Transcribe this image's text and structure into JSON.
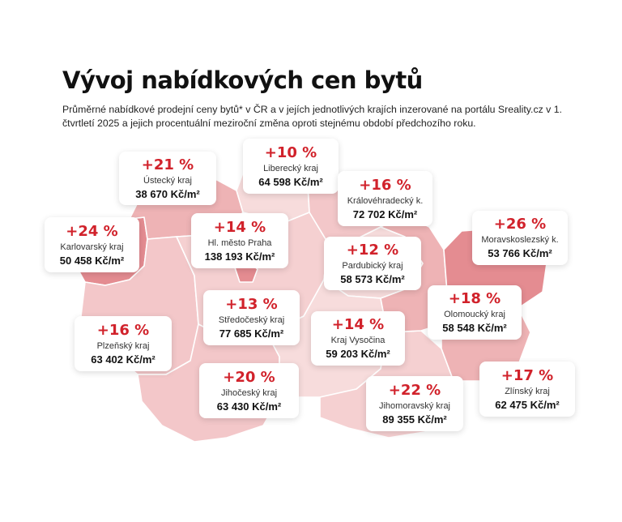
{
  "header": {
    "title": "Vývoj nabídkových cen bytů",
    "subtitle": "Průměrné nabídkové prodejní ceny bytů* v ČR a v jejích jednotlivých krajích inzerované na portálu Sreality.cz v 1. čtvrtletí 2025 a jejich procentuální meziroční změna oproti stejnému období předchozího roku."
  },
  "colors": {
    "accent_red": "#d1222b",
    "map_light": "#f7dcdc",
    "map_mid": "#eeb3b5",
    "map_strong": "#e48c91",
    "map_outline": "#ffffff"
  },
  "regions": [
    {
      "id": "ustecky",
      "change": "+21 %",
      "name": "Ústecký kraj",
      "price": "38 670 Kč/m²"
    },
    {
      "id": "liberecky",
      "change": "+10 %",
      "name": "Liberecký kraj",
      "price": "64 598 Kč/m²"
    },
    {
      "id": "kralovehradecky",
      "change": "+16 %",
      "name": "Královéhradecký k.",
      "price": "72 702 Kč/m²"
    },
    {
      "id": "karlovarsky",
      "change": "+24 %",
      "name": "Karlovarský kraj",
      "price": "50 458 Kč/m²"
    },
    {
      "id": "praha",
      "change": "+14 %",
      "name": "Hl. město Praha",
      "price": "138 193 Kč/m²"
    },
    {
      "id": "pardubicky",
      "change": "+12 %",
      "name": "Pardubický kraj",
      "price": "58 573 Kč/m²"
    },
    {
      "id": "moravskoslezsky",
      "change": "+26 %",
      "name": "Moravskoslezský k.",
      "price": "53 766 Kč/m²"
    },
    {
      "id": "stredocesky",
      "change": "+13 %",
      "name": "Středočeský kraj",
      "price": "77 685 Kč/m²"
    },
    {
      "id": "olomoucky",
      "change": "+18 %",
      "name": "Olomoucký kraj",
      "price": "58 548 Kč/m²"
    },
    {
      "id": "plzensky",
      "change": "+16 %",
      "name": "Plzeňský kraj",
      "price": "63 402 Kč/m²"
    },
    {
      "id": "vysocina",
      "change": "+14 %",
      "name": "Kraj Vysočina",
      "price": "59 203 Kč/m²"
    },
    {
      "id": "jihocesky",
      "change": "+20 %",
      "name": "Jihočeský kraj",
      "price": "63 430 Kč/m²"
    },
    {
      "id": "jihomoravsky",
      "change": "+22 %",
      "name": "Jihomoravský kraj",
      "price": "89 355 Kč/m²"
    },
    {
      "id": "zlinsky",
      "change": "+17 %",
      "name": "Zlínský kraj",
      "price": "62 475 Kč/m²"
    }
  ]
}
